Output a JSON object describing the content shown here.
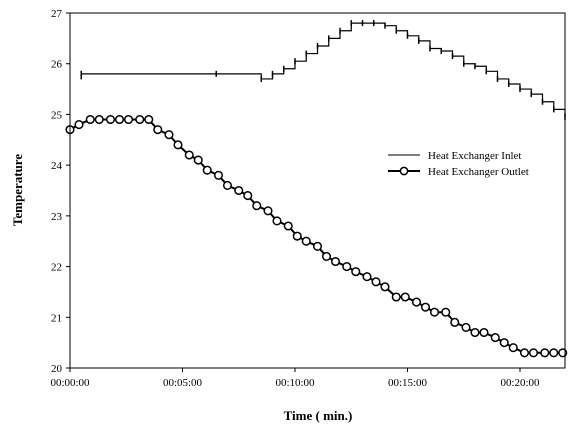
{
  "chart_data": {
    "type": "line",
    "xlabel": "Time ( min.)",
    "ylabel": "Temperature",
    "ylim": [
      20,
      27
    ],
    "xlim_min": [
      0,
      22
    ],
    "y_ticks": [
      "20",
      "21",
      "22",
      "23",
      "24",
      "25",
      "26",
      "27"
    ],
    "x_ticks": [
      "00:00:00",
      "00:05:00",
      "00:10:00",
      "00:15:00",
      "00:20:00"
    ],
    "legend": {
      "placement": "center-right"
    },
    "grid": false,
    "series": [
      {
        "name": "Heat Exchanger Inlet",
        "style": "line",
        "color": "#000000",
        "x": [
          0.5,
          0.5,
          0.5,
          6.5,
          8.5,
          9.0,
          9.5,
          10.0,
          10.5,
          11.0,
          11.5,
          12.0,
          12.5,
          13.0,
          13.5,
          14.0,
          14.5,
          15.0,
          15.5,
          16.0,
          16.5,
          17.0,
          17.5,
          18.0,
          18.5,
          19.0,
          19.5,
          20.0,
          20.5,
          21.0,
          21.5,
          22.0
        ],
        "y": [
          25.75,
          25.8,
          25.8,
          25.8,
          25.7,
          25.8,
          25.9,
          26.05,
          26.2,
          26.35,
          26.5,
          26.65,
          26.8,
          26.8,
          26.8,
          26.75,
          26.65,
          26.55,
          26.45,
          26.3,
          26.25,
          26.15,
          26.0,
          25.95,
          25.85,
          25.7,
          25.6,
          25.5,
          25.4,
          25.25,
          25.1,
          24.95
        ]
      },
      {
        "name": "Heat Exchanger Outlet",
        "style": "line-markers",
        "color": "#000000",
        "x": [
          0.0,
          0.4,
          0.9,
          1.3,
          1.8,
          2.2,
          2.6,
          3.1,
          3.5,
          3.9,
          4.4,
          4.8,
          5.3,
          5.7,
          6.1,
          6.6,
          7.0,
          7.5,
          7.9,
          8.3,
          8.8,
          9.2,
          9.7,
          10.1,
          10.5,
          11.0,
          11.4,
          11.8,
          12.3,
          12.7,
          13.2,
          13.6,
          14.0,
          14.5,
          14.9,
          15.4,
          15.8,
          16.2,
          16.7,
          17.1,
          17.6,
          18.0,
          18.4,
          18.9,
          19.3,
          19.7,
          20.2,
          20.6,
          21.1,
          21.5,
          21.9
        ],
        "y": [
          24.7,
          24.8,
          24.9,
          24.9,
          24.9,
          24.9,
          24.9,
          24.9,
          24.9,
          24.7,
          24.6,
          24.4,
          24.2,
          24.1,
          23.9,
          23.8,
          23.6,
          23.5,
          23.4,
          23.2,
          23.1,
          22.9,
          22.8,
          22.6,
          22.5,
          22.4,
          22.2,
          22.1,
          22.0,
          21.9,
          21.8,
          21.7,
          21.6,
          21.4,
          21.4,
          21.3,
          21.2,
          21.1,
          21.1,
          20.9,
          20.8,
          20.7,
          20.7,
          20.6,
          20.5,
          20.4,
          20.3,
          20.3,
          20.3,
          20.3,
          20.3
        ]
      }
    ]
  }
}
